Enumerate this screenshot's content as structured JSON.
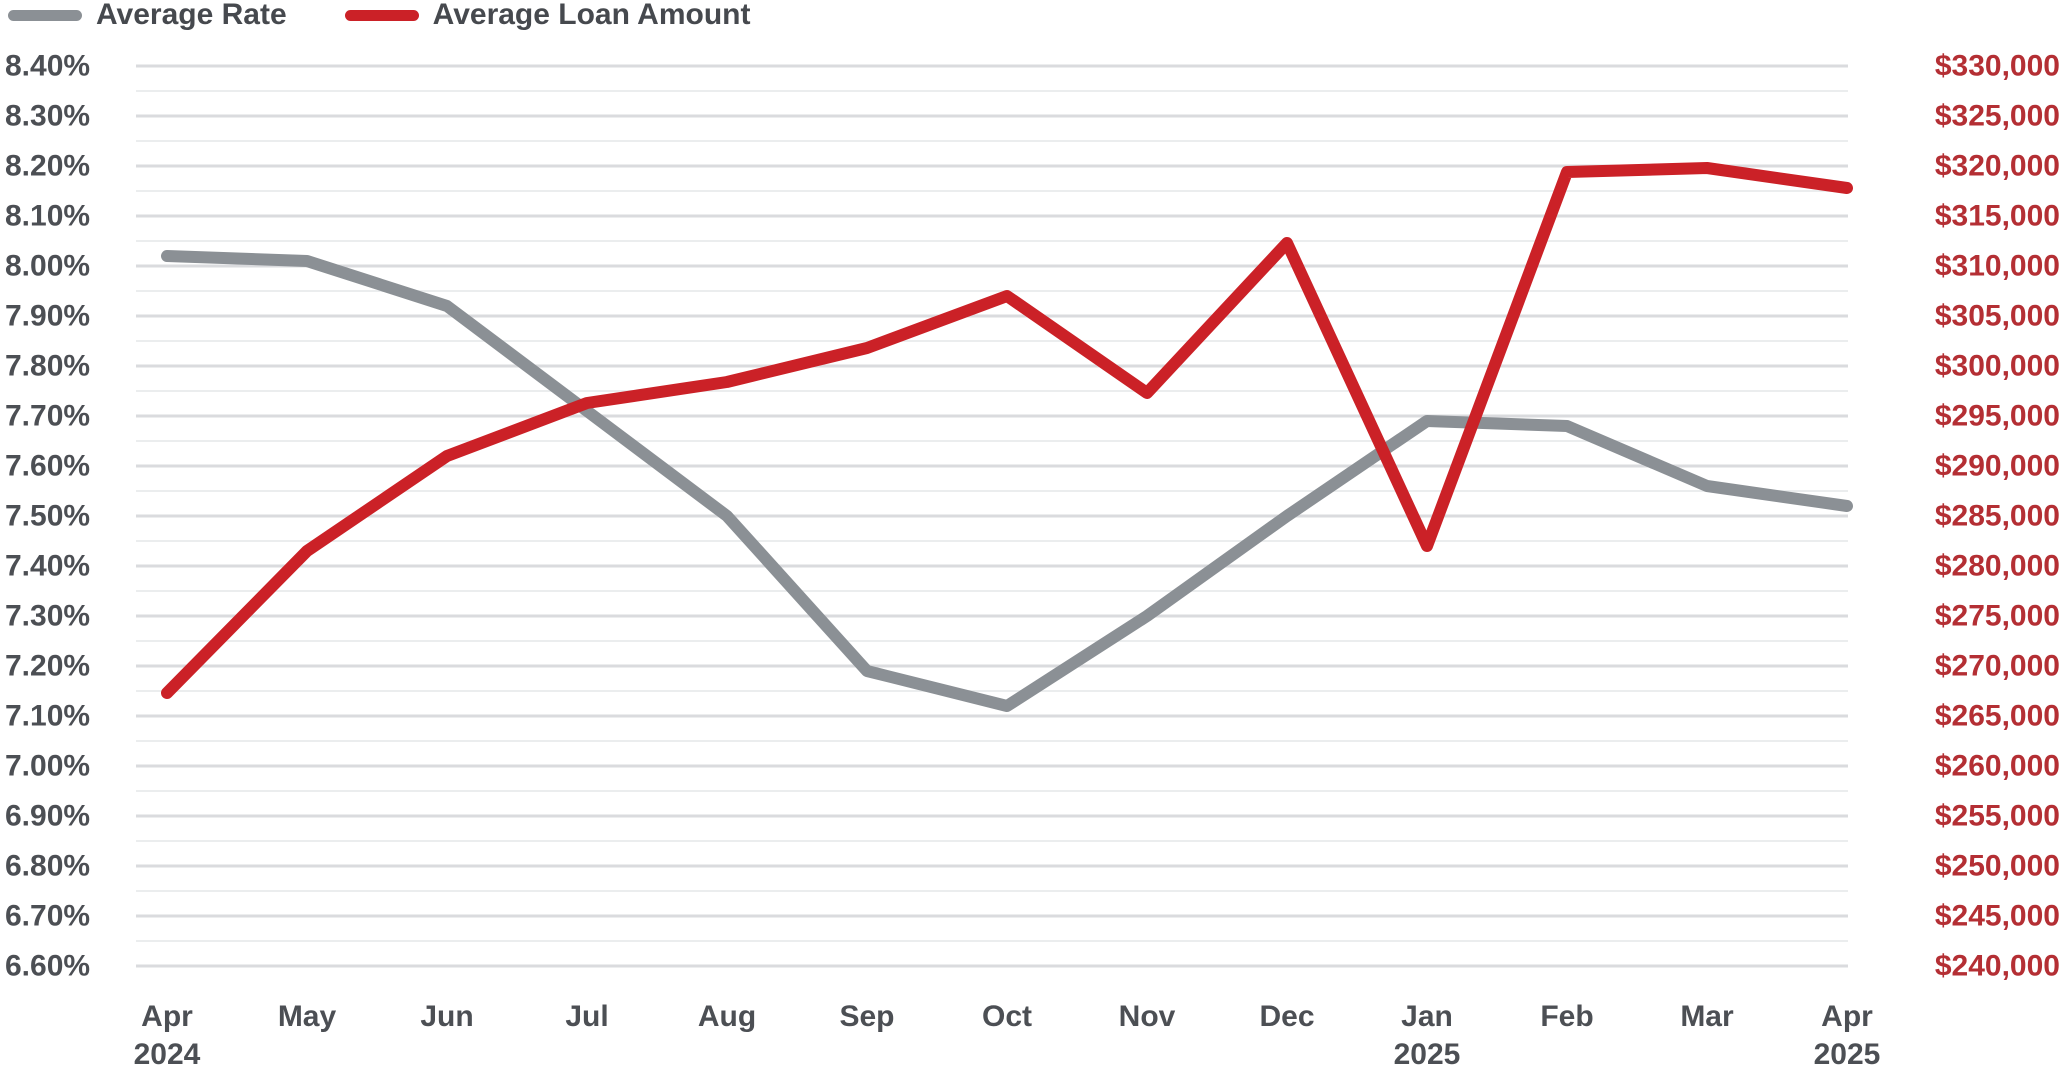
{
  "legend": {
    "items": [
      {
        "label": "Average Rate",
        "color": "#8b9095"
      },
      {
        "label": "Average Loan Amount",
        "color": "#cb2127"
      }
    ]
  },
  "chart_data": {
    "type": "line",
    "title": "",
    "legend_position": "top-left",
    "grid": "horizontal-major-and-minor",
    "categories": [
      {
        "month": "Apr",
        "year": "2024"
      },
      {
        "month": "May",
        "year": ""
      },
      {
        "month": "Jun",
        "year": ""
      },
      {
        "month": "Jul",
        "year": ""
      },
      {
        "month": "Aug",
        "year": ""
      },
      {
        "month": "Sep",
        "year": ""
      },
      {
        "month": "Oct",
        "year": ""
      },
      {
        "month": "Nov",
        "year": ""
      },
      {
        "month": "Dec",
        "year": ""
      },
      {
        "month": "Jan",
        "year": "2025"
      },
      {
        "month": "Feb",
        "year": ""
      },
      {
        "month": "Mar",
        "year": ""
      },
      {
        "month": "Apr",
        "year": "2025"
      }
    ],
    "series": [
      {
        "name": "Average Rate",
        "axis": "rate",
        "color": "#8b9095",
        "values": [
          8.02,
          8.01,
          7.92,
          7.71,
          7.5,
          7.19,
          7.12,
          7.3,
          7.5,
          7.69,
          7.68,
          7.56,
          7.52
        ]
      },
      {
        "name": "Average Loan Amount",
        "axis": "loan",
        "color": "#cb2127",
        "values": [
          267300,
          281500,
          291000,
          296300,
          298400,
          301800,
          307000,
          297300,
          312300,
          282000,
          319400,
          319800,
          317800
        ]
      }
    ],
    "axes": {
      "rate": {
        "side": "left",
        "min": 6.6,
        "max": 8.4,
        "step": 0.1,
        "label_color": "#4c4f54",
        "ticks": [
          "8.40%",
          "8.30%",
          "8.20%",
          "8.10%",
          "8.00%",
          "7.90%",
          "7.80%",
          "7.70%",
          "7.60%",
          "7.50%",
          "7.40%",
          "7.30%",
          "7.20%",
          "7.10%",
          "7.00%",
          "6.90%",
          "6.80%",
          "6.70%",
          "6.60%"
        ]
      },
      "loan": {
        "side": "right",
        "min": 240000,
        "max": 330000,
        "step": 5000,
        "label_color": "#b42f34",
        "ticks": [
          "$330,000",
          "$325,000",
          "$320,000",
          "$315,000",
          "$310,000",
          "$305,000",
          "$300,000",
          "$295,000",
          "$290,000",
          "$285,000",
          "$280,000",
          "$275,000",
          "$270,000",
          "$265,000",
          "$260,000",
          "$255,000",
          "$250,000",
          "$245,000",
          "$240,000"
        ]
      }
    },
    "x_label_color": "#4c4f54"
  }
}
